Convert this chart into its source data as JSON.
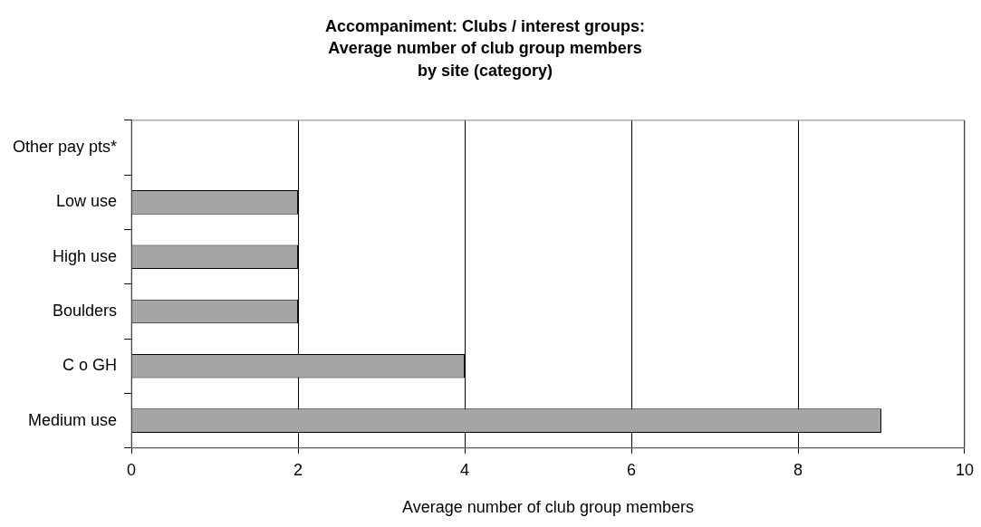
{
  "chart_data": {
    "type": "bar",
    "orientation": "horizontal",
    "title": "Accompaniment: Clubs / interest groups:\nAverage number of club group members\nby site (category)",
    "xlabel": "Average number of club group members",
    "categories": [
      "Other pay pts*",
      "Low use",
      "High use",
      "Boulders",
      "C o GH",
      "Medium use"
    ],
    "values": [
      0,
      2,
      2,
      2,
      4,
      9
    ],
    "color": "#a6a6a6",
    "xlim": [
      0,
      10
    ],
    "xticks": [
      0,
      2,
      4,
      6,
      8,
      10
    ],
    "grid": "x",
    "legend": false
  }
}
